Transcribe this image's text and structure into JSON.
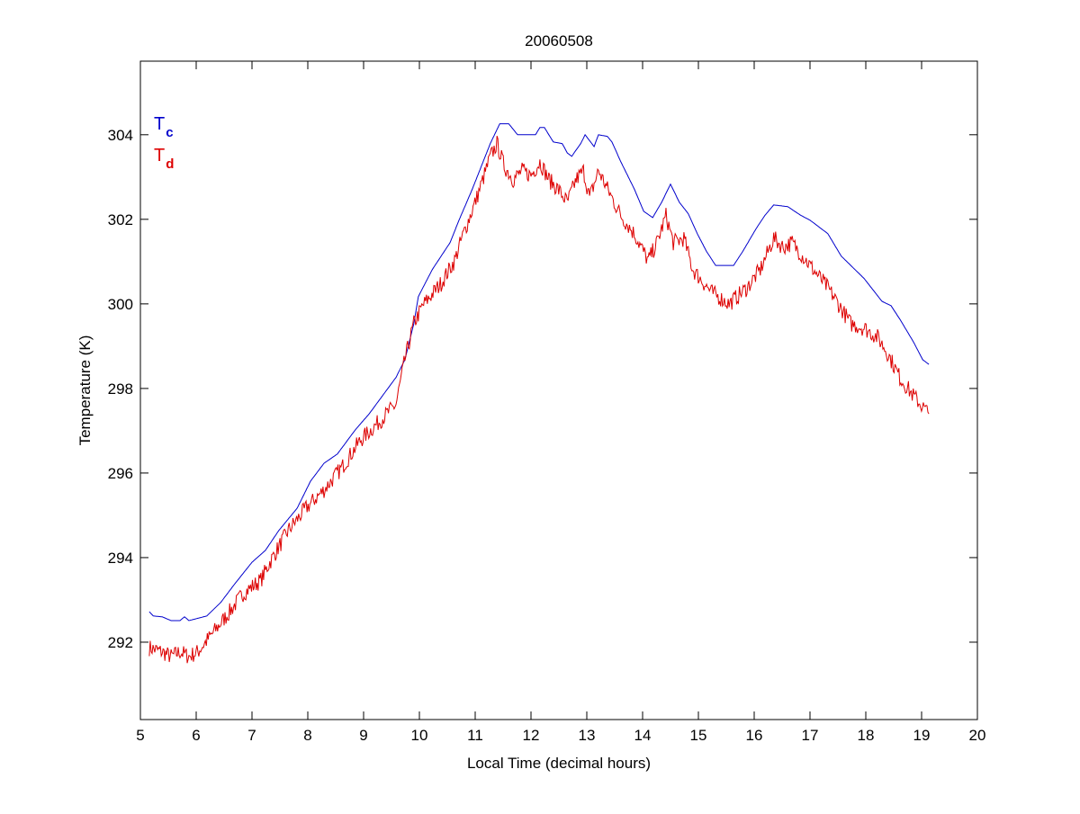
{
  "chart_data": {
    "type": "line",
    "title": "20060508",
    "xlabel": "Local Time (decimal hours)",
    "ylabel": "Temperature (K)",
    "xlim": [
      5,
      20
    ],
    "ylim": [
      290.17,
      305.74
    ],
    "xticks": [
      5,
      6,
      7,
      8,
      9,
      10,
      11,
      12,
      13,
      14,
      15,
      16,
      17,
      18,
      19,
      20
    ],
    "yticks": [
      292,
      294,
      296,
      298,
      300,
      302,
      304
    ],
    "grid": false,
    "legend_placement": "top-left",
    "series": [
      {
        "name": "Tc",
        "label_main": "T",
        "label_sub": "c",
        "color": "#0000cc",
        "points": [
          [
            5.16,
            292.72
          ],
          [
            5.23,
            292.62
          ],
          [
            5.39,
            292.6
          ],
          [
            5.55,
            292.51
          ],
          [
            5.71,
            292.51
          ],
          [
            5.79,
            292.6
          ],
          [
            5.87,
            292.51
          ],
          [
            6.19,
            292.62
          ],
          [
            6.44,
            292.94
          ],
          [
            6.68,
            293.36
          ],
          [
            7.0,
            293.89
          ],
          [
            7.24,
            294.17
          ],
          [
            7.48,
            294.64
          ],
          [
            7.81,
            295.17
          ],
          [
            8.05,
            295.81
          ],
          [
            8.29,
            296.23
          ],
          [
            8.53,
            296.45
          ],
          [
            8.85,
            297.02
          ],
          [
            9.1,
            297.4
          ],
          [
            9.34,
            297.83
          ],
          [
            9.58,
            298.26
          ],
          [
            9.74,
            298.68
          ],
          [
            9.9,
            299.53
          ],
          [
            9.98,
            300.17
          ],
          [
            10.23,
            300.81
          ],
          [
            10.55,
            301.45
          ],
          [
            10.71,
            301.98
          ],
          [
            10.95,
            302.72
          ],
          [
            11.27,
            303.79
          ],
          [
            11.44,
            304.26
          ],
          [
            11.6,
            304.26
          ],
          [
            11.76,
            304.0
          ],
          [
            12.08,
            304.0
          ],
          [
            12.16,
            304.17
          ],
          [
            12.24,
            304.17
          ],
          [
            12.4,
            303.83
          ],
          [
            12.56,
            303.79
          ],
          [
            12.65,
            303.57
          ],
          [
            12.73,
            303.49
          ],
          [
            12.89,
            303.79
          ],
          [
            12.97,
            304.0
          ],
          [
            13.13,
            303.72
          ],
          [
            13.21,
            304.0
          ],
          [
            13.37,
            303.96
          ],
          [
            13.45,
            303.83
          ],
          [
            13.61,
            303.36
          ],
          [
            13.85,
            302.72
          ],
          [
            14.02,
            302.19
          ],
          [
            14.18,
            302.04
          ],
          [
            14.34,
            302.4
          ],
          [
            14.5,
            302.83
          ],
          [
            14.66,
            302.4
          ],
          [
            14.82,
            302.13
          ],
          [
            14.98,
            301.66
          ],
          [
            15.15,
            301.23
          ],
          [
            15.31,
            300.91
          ],
          [
            15.63,
            300.91
          ],
          [
            15.79,
            301.23
          ],
          [
            16.03,
            301.77
          ],
          [
            16.19,
            302.09
          ],
          [
            16.35,
            302.34
          ],
          [
            16.6,
            302.3
          ],
          [
            16.84,
            302.09
          ],
          [
            17.0,
            301.98
          ],
          [
            17.32,
            301.66
          ],
          [
            17.56,
            301.13
          ],
          [
            17.73,
            300.91
          ],
          [
            17.97,
            300.6
          ],
          [
            18.29,
            300.06
          ],
          [
            18.45,
            299.96
          ],
          [
            18.61,
            299.64
          ],
          [
            18.85,
            299.11
          ],
          [
            19.02,
            298.68
          ],
          [
            19.13,
            298.57
          ]
        ]
      },
      {
        "name": "Td",
        "label_main": "T",
        "label_sub": "d",
        "color": "#dd0000",
        "points": [
          [
            5.16,
            291.87
          ],
          [
            5.39,
            291.77
          ],
          [
            5.55,
            291.66
          ],
          [
            5.71,
            291.77
          ],
          [
            5.87,
            291.66
          ],
          [
            6.03,
            291.77
          ],
          [
            6.35,
            292.3
          ],
          [
            6.6,
            292.72
          ],
          [
            6.84,
            293.15
          ],
          [
            7.16,
            293.47
          ],
          [
            7.32,
            293.89
          ],
          [
            7.65,
            294.64
          ],
          [
            7.97,
            295.17
          ],
          [
            8.29,
            295.6
          ],
          [
            8.61,
            296.13
          ],
          [
            8.94,
            296.77
          ],
          [
            9.26,
            297.19
          ],
          [
            9.58,
            297.62
          ],
          [
            9.74,
            298.68
          ],
          [
            9.9,
            299.53
          ],
          [
            10.06,
            299.96
          ],
          [
            10.39,
            300.49
          ],
          [
            10.63,
            301.02
          ],
          [
            10.79,
            301.66
          ],
          [
            11.03,
            302.51
          ],
          [
            11.27,
            303.47
          ],
          [
            11.39,
            303.79
          ],
          [
            11.52,
            303.26
          ],
          [
            11.68,
            302.94
          ],
          [
            11.84,
            303.15
          ],
          [
            12.0,
            303.04
          ],
          [
            12.16,
            303.36
          ],
          [
            12.32,
            302.94
          ],
          [
            12.48,
            302.72
          ],
          [
            12.65,
            302.4
          ],
          [
            12.81,
            302.94
          ],
          [
            12.94,
            303.15
          ],
          [
            13.05,
            302.51
          ],
          [
            13.21,
            303.15
          ],
          [
            13.37,
            302.72
          ],
          [
            13.61,
            302.09
          ],
          [
            13.85,
            301.66
          ],
          [
            14.1,
            301.02
          ],
          [
            14.26,
            301.45
          ],
          [
            14.42,
            302.09
          ],
          [
            14.55,
            301.45
          ],
          [
            14.74,
            301.55
          ],
          [
            14.9,
            300.81
          ],
          [
            15.23,
            300.28
          ],
          [
            15.55,
            300.0
          ],
          [
            15.87,
            300.38
          ],
          [
            16.11,
            300.81
          ],
          [
            16.35,
            301.55
          ],
          [
            16.52,
            301.34
          ],
          [
            16.68,
            301.45
          ],
          [
            17.0,
            300.91
          ],
          [
            17.32,
            300.38
          ],
          [
            17.48,
            300.06
          ],
          [
            17.73,
            299.53
          ],
          [
            17.97,
            299.43
          ],
          [
            18.21,
            299.21
          ],
          [
            18.37,
            298.89
          ],
          [
            18.61,
            298.26
          ],
          [
            18.85,
            297.83
          ],
          [
            19.13,
            297.4
          ]
        ]
      }
    ]
  }
}
